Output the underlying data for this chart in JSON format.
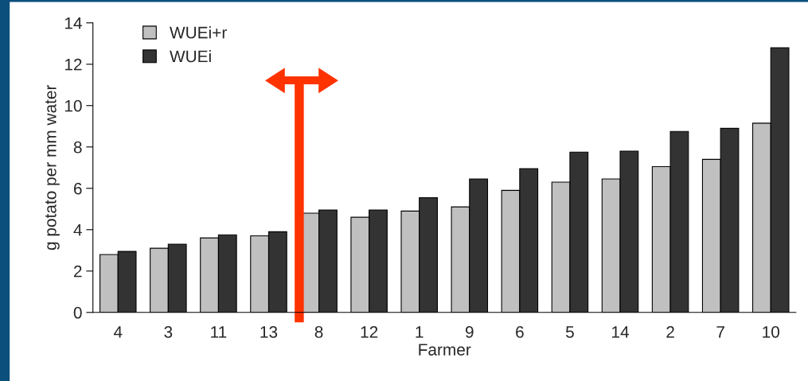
{
  "chart_data": {
    "type": "bar",
    "xlabel": "Farmer",
    "ylabel": "g potato per mm water",
    "categories": [
      "4",
      "3",
      "11",
      "13",
      "8",
      "12",
      "1",
      "9",
      "6",
      "5",
      "14",
      "2",
      "7",
      "10"
    ],
    "series": [
      {
        "name": "WUEi+r",
        "color": "#c0c0c0",
        "values": [
          2.8,
          3.1,
          3.6,
          3.7,
          4.8,
          4.6,
          4.9,
          5.1,
          5.9,
          6.3,
          6.45,
          7.05,
          7.4,
          9.15
        ]
      },
      {
        "name": "WUEi",
        "color": "#333333",
        "values": [
          2.95,
          3.3,
          3.75,
          3.9,
          4.95,
          4.95,
          5.55,
          6.45,
          6.95,
          7.75,
          7.8,
          8.75,
          8.9,
          12.8
        ]
      }
    ],
    "ylim": [
      0,
      14
    ],
    "yticks": [
      0,
      2,
      4,
      6,
      8,
      10,
      12,
      14
    ],
    "grid": false,
    "legend": "top left"
  }
}
